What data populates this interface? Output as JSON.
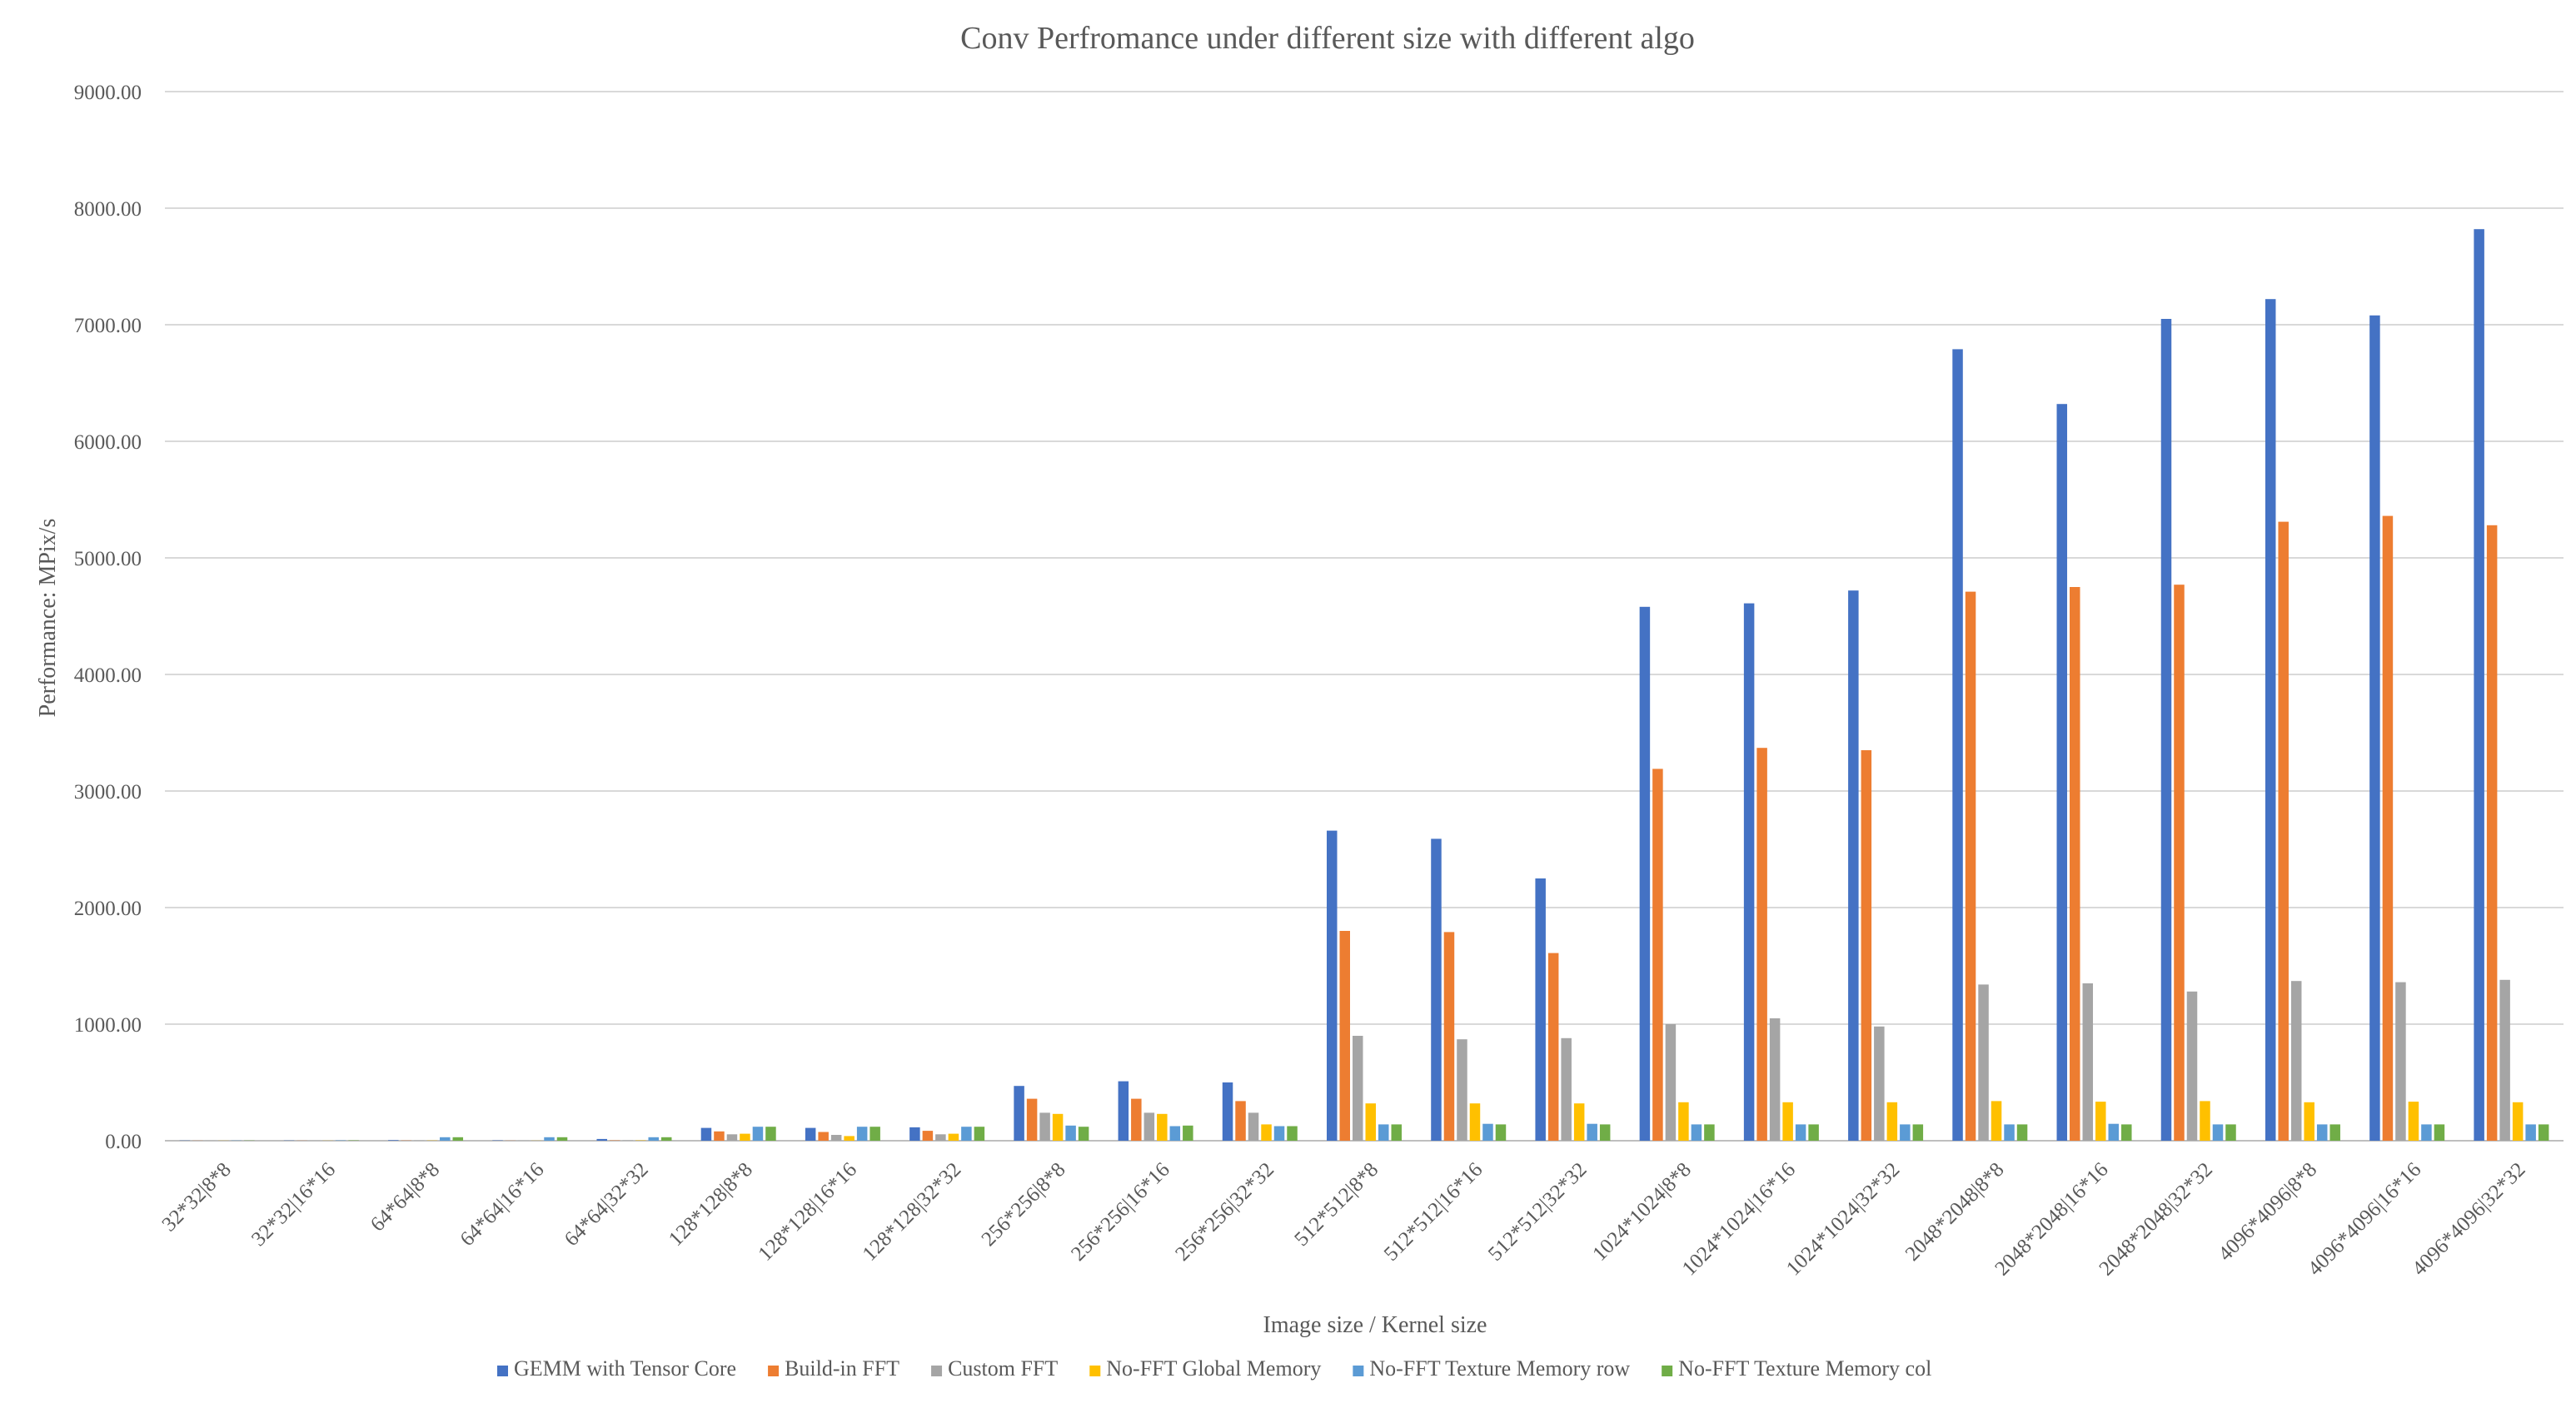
{
  "chart_data": {
    "type": "bar",
    "title": "Conv Perfromance under different size with different algo",
    "xlabel": "Image size / Kernel size",
    "ylabel": "Performance: MPix/s",
    "ylim": [
      0,
      9000
    ],
    "yticks": [
      "0.00",
      "1000.00",
      "2000.00",
      "3000.00",
      "4000.00",
      "5000.00",
      "6000.00",
      "7000.00",
      "8000.00",
      "9000.00"
    ],
    "grid": true,
    "legend_position": "bottom",
    "categories": [
      "32*32|8*8",
      "32*32|16*16",
      "64*64|8*8",
      "64*64|16*16",
      "64*64|32*32",
      "128*128|8*8",
      "128*128|16*16",
      "128*128|32*32",
      "256*256|8*8",
      "256*256|16*16",
      "256*256|32*32",
      "512*512|8*8",
      "512*512|16*16",
      "512*512|32*32",
      "1024*1024|8*8",
      "1024*1024|16*16",
      "1024*1024|32*32",
      "2048*2048|8*8",
      "2048*2048|16*16",
      "2048*2048|32*32",
      "4096*4096|8*8",
      "4096*4096|16*16",
      "4096*4096|32*32"
    ],
    "series": [
      {
        "name": "GEMM with Tensor Core",
        "color": "#4472C4",
        "values": [
          2,
          2,
          5,
          3,
          15,
          110,
          110,
          115,
          470,
          510,
          500,
          2660,
          2590,
          2250,
          4580,
          4610,
          4720,
          6790,
          6320,
          7050,
          7220,
          7080,
          7820
        ]
      },
      {
        "name": "Build-in FFT",
        "color": "#ED7D31",
        "values": [
          1,
          1,
          2,
          1,
          3,
          80,
          75,
          85,
          360,
          360,
          340,
          1800,
          1790,
          1610,
          3190,
          3370,
          3350,
          4710,
          4750,
          4770,
          5310,
          5360,
          5280
        ]
      },
      {
        "name": "Custom FFT",
        "color": "#A5A5A5",
        "values": [
          1,
          1,
          2,
          1,
          3,
          55,
          50,
          55,
          240,
          240,
          240,
          900,
          870,
          880,
          1000,
          1050,
          980,
          1340,
          1350,
          1280,
          1370,
          1360,
          1380
        ]
      },
      {
        "name": "No-FFT Global Memory",
        "color": "#FFC000",
        "values": [
          1,
          1,
          2,
          1,
          3,
          60,
          40,
          60,
          230,
          230,
          140,
          320,
          320,
          320,
          330,
          330,
          330,
          340,
          335,
          340,
          330,
          335,
          330
        ]
      },
      {
        "name": "No-FFT Texture Memory row",
        "color": "#5B9BD5",
        "values": [
          2,
          3,
          30,
          30,
          30,
          120,
          120,
          120,
          130,
          125,
          125,
          140,
          145,
          145,
          140,
          140,
          140,
          140,
          145,
          140,
          140,
          140,
          140
        ]
      },
      {
        "name": "No-FFT Texture Memory col",
        "color": "#70AD47",
        "values": [
          2,
          3,
          30,
          30,
          30,
          120,
          120,
          120,
          120,
          130,
          125,
          140,
          140,
          140,
          140,
          140,
          140,
          140,
          140,
          140,
          140,
          140,
          140
        ]
      }
    ]
  }
}
